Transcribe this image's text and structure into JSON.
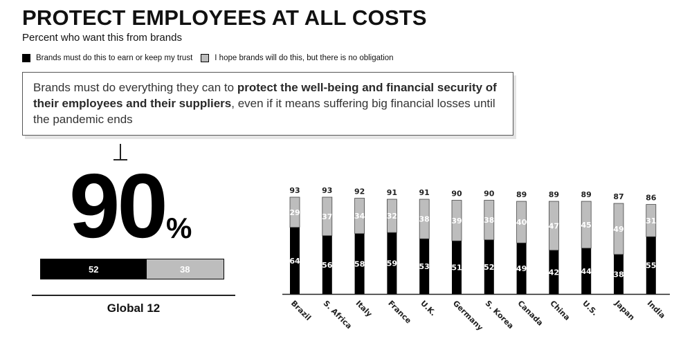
{
  "header": {
    "title": "PROTECT EMPLOYEES AT ALL COSTS",
    "subtitle": "Percent who want this from brands"
  },
  "legend": [
    {
      "label": "Brands must do this to earn or keep my trust",
      "color": "#000000"
    },
    {
      "label": "I hope brands will do this, but there is no obligation",
      "color": "#bdbdbd"
    }
  ],
  "callout": {
    "part1": "Brands must do everything they can to ",
    "bold": "protect the well-being and financial security of their employees and their suppliers",
    "part2": ", even if it means suffering big financial losses until the pandemic ends"
  },
  "global": {
    "value": "90",
    "pct_sign": "%",
    "must_label": "52",
    "hope_label": "38",
    "must": 52,
    "hope": 38,
    "label": "Global 12"
  },
  "chart_data": {
    "type": "bar",
    "stacked": true,
    "categories": [
      "Brazil",
      "S. Africa",
      "Italy",
      "France",
      "U.K.",
      "Germany",
      "S. Korea",
      "Canada",
      "China",
      "U.S.",
      "Japan",
      "India"
    ],
    "totals": [
      93,
      93,
      92,
      91,
      91,
      90,
      90,
      89,
      89,
      89,
      87,
      86
    ],
    "series": [
      {
        "name": "Brands must do this to earn or keep my trust",
        "color": "#000000",
        "values": [
          64,
          56,
          58,
          59,
          53,
          51,
          52,
          49,
          42,
          44,
          38,
          55
        ]
      },
      {
        "name": "I hope brands will do this, but there is no obligation",
        "color": "#bdbdbd",
        "values": [
          29,
          37,
          34,
          32,
          38,
          39,
          38,
          40,
          47,
          45,
          49,
          31
        ]
      }
    ],
    "ylim": [
      0,
      100
    ]
  }
}
